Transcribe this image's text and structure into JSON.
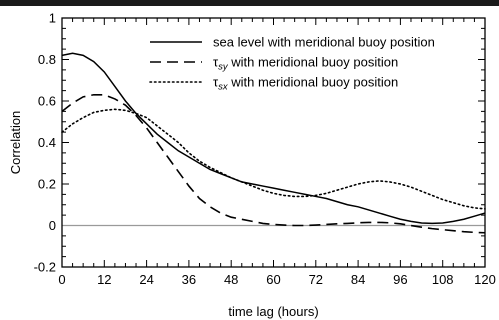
{
  "chart_data": {
    "type": "line",
    "title": "",
    "xlabel": "time lag (hours)",
    "ylabel": "Correlation",
    "xlim": [
      0,
      120
    ],
    "ylim": [
      -0.2,
      1
    ],
    "x_ticks": [
      0,
      12,
      24,
      36,
      48,
      60,
      72,
      84,
      96,
      108,
      120
    ],
    "x_tick_labels": [
      "0",
      "12",
      "24",
      "36",
      "48",
      "60",
      "72",
      "84",
      "96",
      "108",
      "120"
    ],
    "y_ticks": [
      -0.2,
      0,
      0.2,
      0.4,
      0.6,
      0.8,
      1
    ],
    "y_tick_labels": [
      "-0.2",
      "0",
      "0.2",
      "0.4",
      "0.6",
      "0.8",
      "1"
    ],
    "grid": false,
    "zero_line": true,
    "legend_position": "top-right",
    "x": [
      0,
      3,
      6,
      9,
      12,
      15,
      18,
      21,
      24,
      27,
      30,
      33,
      36,
      39,
      42,
      45,
      48,
      51,
      54,
      57,
      60,
      63,
      66,
      69,
      72,
      75,
      78,
      81,
      84,
      87,
      90,
      93,
      96,
      99,
      102,
      105,
      108,
      111,
      114,
      117,
      120
    ],
    "series": [
      {
        "name": "sea level with meridional buoy position",
        "style": "solid",
        "color": "#000000",
        "values": [
          0.82,
          0.83,
          0.82,
          0.79,
          0.74,
          0.67,
          0.6,
          0.54,
          0.49,
          0.44,
          0.4,
          0.36,
          0.33,
          0.3,
          0.27,
          0.25,
          0.23,
          0.21,
          0.2,
          0.19,
          0.18,
          0.17,
          0.16,
          0.15,
          0.14,
          0.13,
          0.115,
          0.1,
          0.09,
          0.075,
          0.06,
          0.045,
          0.03,
          0.02,
          0.012,
          0.01,
          0.012,
          0.02,
          0.03,
          0.045,
          0.06
        ]
      },
      {
        "name": "τsy with meridional buoy position",
        "style": "dashed",
        "color": "#000000",
        "values": [
          0.55,
          0.59,
          0.62,
          0.63,
          0.63,
          0.61,
          0.58,
          0.53,
          0.47,
          0.4,
          0.33,
          0.26,
          0.19,
          0.13,
          0.09,
          0.06,
          0.04,
          0.03,
          0.02,
          0.01,
          0.005,
          0.002,
          0.0,
          0.0,
          0.002,
          0.005,
          0.008,
          0.01,
          0.013,
          0.015,
          0.015,
          0.013,
          0.008,
          0.0,
          -0.008,
          -0.015,
          -0.02,
          -0.025,
          -0.03,
          -0.033,
          -0.035
        ]
      },
      {
        "name": "τsx with meridional buoy position",
        "style": "dotted",
        "color": "#000000",
        "values": [
          0.45,
          0.49,
          0.52,
          0.545,
          0.555,
          0.56,
          0.555,
          0.54,
          0.52,
          0.48,
          0.44,
          0.4,
          0.35,
          0.31,
          0.28,
          0.255,
          0.23,
          0.21,
          0.19,
          0.17,
          0.155,
          0.145,
          0.14,
          0.14,
          0.145,
          0.155,
          0.17,
          0.185,
          0.2,
          0.21,
          0.215,
          0.21,
          0.2,
          0.185,
          0.165,
          0.145,
          0.125,
          0.11,
          0.095,
          0.085,
          0.08
        ]
      }
    ],
    "legend": [
      {
        "prefix": "",
        "sub": "",
        "rest": "sea level with meridional buoy position",
        "style": "solid"
      },
      {
        "prefix": "τ",
        "sub": "sy",
        "rest": " with meridional buoy position",
        "style": "dashed"
      },
      {
        "prefix": "τ",
        "sub": "sx",
        "rest": " with meridional buoy position",
        "style": "dotted"
      }
    ],
    "colors": {
      "line": "#000000",
      "zero_line": "#9a9a9a",
      "axes": "#000000",
      "top_bar": "#1a1a1a"
    }
  }
}
